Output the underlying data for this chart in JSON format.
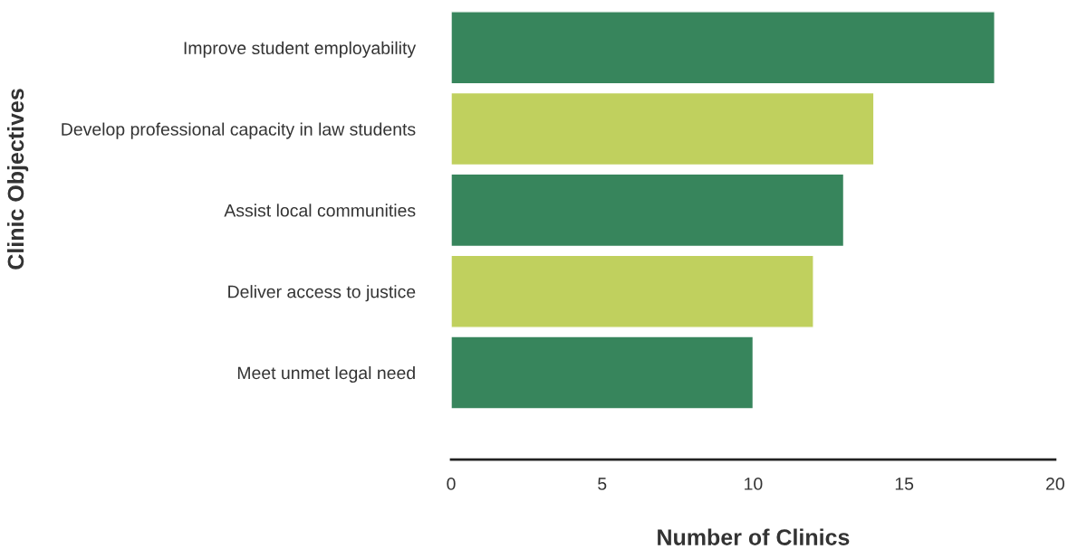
{
  "chart_data": {
    "type": "bar",
    "orientation": "horizontal",
    "categories": [
      "Improve student employability",
      "Develop professional capacity in law students",
      "Assist local communities",
      "Deliver access to justice",
      "Meet unmet legal need"
    ],
    "values": [
      18,
      14,
      13,
      12,
      10
    ],
    "colors": [
      "#37855c",
      "#c0d05e",
      "#37855c",
      "#c0d05e",
      "#37855c"
    ],
    "xlabel": "Number of Clinics",
    "ylabel": "Clinic Objectives",
    "xlim": [
      0,
      20
    ],
    "xticks": [
      0,
      5,
      10,
      15,
      20
    ],
    "grid": false,
    "legend": false
  }
}
